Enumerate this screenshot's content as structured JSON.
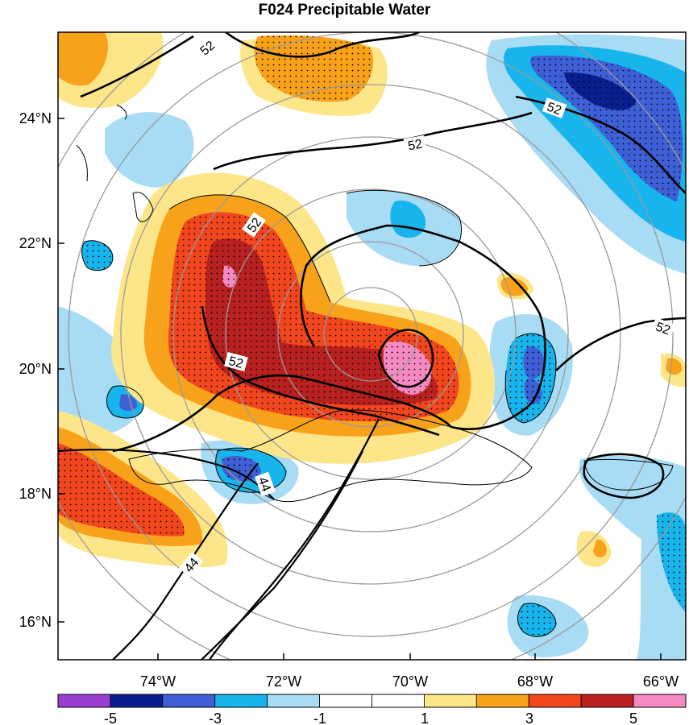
{
  "title": "F024 Precipitable Water",
  "axes": {
    "lat_ticks": [
      "24°N",
      "22°N",
      "20°N",
      "18°N",
      "16°N"
    ],
    "lon_ticks": [
      "74°W",
      "72°W",
      "70°W",
      "68°W",
      "66°W"
    ]
  },
  "colorbar": {
    "labels": [
      "-5",
      "-3",
      "-1",
      "1",
      "3",
      "5"
    ],
    "colors": [
      "#9a3fd1",
      "#0a1f8f",
      "#3f5fd6",
      "#18b4ec",
      "#a8dcf5",
      "#ffffff",
      "#ffffff",
      "#fde68a",
      "#f8a21b",
      "#f2461e",
      "#b8211f",
      "#f58ac2"
    ]
  },
  "contour_labels": [
    "52",
    "52",
    "52",
    "52",
    "52",
    "52",
    "44",
    "44"
  ],
  "palette": {
    "pos1": "#fde68a",
    "pos2": "#f8a21b",
    "pos3": "#f2461e",
    "pos4": "#b8211f",
    "pos5": "#f58ac2",
    "neg1": "#a8dcf5",
    "neg2": "#18b4ec",
    "neg3": "#3f5fd6",
    "neg4": "#0a1f8f"
  }
}
